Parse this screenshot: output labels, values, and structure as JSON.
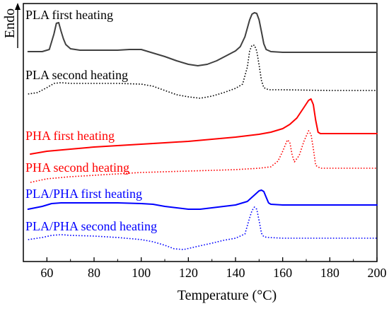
{
  "chart_data": {
    "type": "line",
    "xlabel": "Temperature (°C)",
    "ylabel": "Endo",
    "xlim": [
      50,
      200
    ],
    "x_ticks": [
      "60",
      "80",
      "100",
      "120",
      "140",
      "160",
      "180",
      "200"
    ],
    "x_tick_values": [
      60,
      80,
      100,
      120,
      140,
      160,
      180,
      200
    ],
    "y_ticks_shown": false,
    "grid": false,
    "legend": "none",
    "y_units": "offset heat flow (arbitrary, curves vertically stacked)",
    "series": [
      {
        "name": "PLA first heating",
        "color": "#404040",
        "style": "solid",
        "points": [
          [
            52,
            73
          ],
          [
            58,
            73
          ],
          [
            61,
            70
          ],
          [
            63,
            48
          ],
          [
            64,
            33
          ],
          [
            65,
            32
          ],
          [
            66,
            44
          ],
          [
            67,
            55
          ],
          [
            68,
            63
          ],
          [
            70,
            69
          ],
          [
            74,
            71
          ],
          [
            80,
            71
          ],
          [
            90,
            71
          ],
          [
            95,
            70
          ],
          [
            100,
            70
          ],
          [
            105,
            75
          ],
          [
            110,
            80
          ],
          [
            115,
            86
          ],
          [
            120,
            91
          ],
          [
            124,
            93
          ],
          [
            128,
            91
          ],
          [
            132,
            86
          ],
          [
            136,
            79
          ],
          [
            140,
            72
          ],
          [
            142,
            66
          ],
          [
            144,
            52
          ],
          [
            146,
            28
          ],
          [
            147,
            20
          ],
          [
            148,
            18
          ],
          [
            149,
            19
          ],
          [
            150,
            28
          ],
          [
            151,
            45
          ],
          [
            152,
            62
          ],
          [
            153,
            70
          ],
          [
            155,
            73
          ],
          [
            160,
            74
          ],
          [
            180,
            74
          ],
          [
            200,
            74
          ]
        ]
      },
      {
        "name": "PLA second heating",
        "color": "#000000",
        "style": "dotted",
        "points": [
          [
            52,
            133
          ],
          [
            56,
            131
          ],
          [
            60,
            124
          ],
          [
            63,
            118
          ],
          [
            66,
            117
          ],
          [
            70,
            118
          ],
          [
            80,
            118
          ],
          [
            90,
            118
          ],
          [
            100,
            119
          ],
          [
            105,
            122
          ],
          [
            110,
            128
          ],
          [
            115,
            134
          ],
          [
            120,
            137
          ],
          [
            125,
            139
          ],
          [
            130,
            136
          ],
          [
            135,
            131
          ],
          [
            140,
            125
          ],
          [
            143,
            119
          ],
          [
            145,
            95
          ],
          [
            146,
            72
          ],
          [
            147,
            64
          ],
          [
            148,
            64
          ],
          [
            149,
            72
          ],
          [
            150,
            92
          ],
          [
            151,
            114
          ],
          [
            152,
            124
          ],
          [
            154,
            127
          ],
          [
            160,
            127
          ],
          [
            180,
            128
          ],
          [
            200,
            128
          ]
        ]
      },
      {
        "name": "PHA first heating",
        "color": "#ff0000",
        "style": "solid",
        "points": [
          [
            53,
            218
          ],
          [
            60,
            214
          ],
          [
            70,
            211
          ],
          [
            80,
            208
          ],
          [
            90,
            206
          ],
          [
            100,
            204
          ],
          [
            110,
            202
          ],
          [
            120,
            200
          ],
          [
            130,
            197
          ],
          [
            140,
            194
          ],
          [
            150,
            190
          ],
          [
            155,
            187
          ],
          [
            160,
            182
          ],
          [
            163,
            176
          ],
          [
            166,
            167
          ],
          [
            169,
            152
          ],
          [
            171,
            142
          ],
          [
            172,
            140
          ],
          [
            173,
            148
          ],
          [
            174,
            170
          ],
          [
            175,
            187
          ],
          [
            176,
            189
          ],
          [
            180,
            189
          ],
          [
            190,
            189
          ],
          [
            200,
            189
          ]
        ]
      },
      {
        "name": "PHA second heating",
        "color": "#ff0000",
        "style": "dotted",
        "points": [
          [
            53,
            258
          ],
          [
            60,
            253
          ],
          [
            70,
            250
          ],
          [
            80,
            248
          ],
          [
            90,
            246
          ],
          [
            100,
            244
          ],
          [
            110,
            243
          ],
          [
            120,
            242
          ],
          [
            130,
            241
          ],
          [
            140,
            240
          ],
          [
            150,
            238
          ],
          [
            155,
            236
          ],
          [
            158,
            228
          ],
          [
            160,
            214
          ],
          [
            162,
            198
          ],
          [
            163,
            201
          ],
          [
            164,
            219
          ],
          [
            165,
            229
          ],
          [
            167,
            220
          ],
          [
            169,
            200
          ],
          [
            171,
            185
          ],
          [
            172,
            190
          ],
          [
            173,
            210
          ],
          [
            174,
            234
          ],
          [
            176,
            238
          ],
          [
            180,
            238
          ],
          [
            200,
            238
          ]
        ]
      },
      {
        "name": "PLA/PHA first heating",
        "color": "#0000ff",
        "style": "solid",
        "points": [
          [
            52,
            296
          ],
          [
            58,
            292
          ],
          [
            62,
            288
          ],
          [
            66,
            287
          ],
          [
            70,
            287
          ],
          [
            80,
            287
          ],
          [
            90,
            287
          ],
          [
            100,
            288
          ],
          [
            105,
            289
          ],
          [
            110,
            292
          ],
          [
            115,
            294
          ],
          [
            120,
            296
          ],
          [
            125,
            296
          ],
          [
            130,
            294
          ],
          [
            135,
            292
          ],
          [
            140,
            290
          ],
          [
            145,
            285
          ],
          [
            148,
            276
          ],
          [
            150,
            270
          ],
          [
            151,
            269
          ],
          [
            152,
            271
          ],
          [
            153,
            279
          ],
          [
            154,
            287
          ],
          [
            155,
            289
          ],
          [
            160,
            290
          ],
          [
            180,
            290
          ],
          [
            200,
            290
          ]
        ]
      },
      {
        "name": "PLA/PHA second heating",
        "color": "#0000ff",
        "style": "dotted",
        "points": [
          [
            52,
            339
          ],
          [
            58,
            336
          ],
          [
            62,
            333
          ],
          [
            66,
            332
          ],
          [
            70,
            333
          ],
          [
            80,
            334
          ],
          [
            90,
            336
          ],
          [
            100,
            339
          ],
          [
            105,
            342
          ],
          [
            110,
            347
          ],
          [
            114,
            352
          ],
          [
            118,
            353
          ],
          [
            122,
            350
          ],
          [
            126,
            347
          ],
          [
            130,
            344
          ],
          [
            135,
            340
          ],
          [
            140,
            337
          ],
          [
            144,
            331
          ],
          [
            146,
            308
          ],
          [
            147,
            298
          ],
          [
            148,
            293
          ],
          [
            149,
            296
          ],
          [
            150,
            312
          ],
          [
            151,
            330
          ],
          [
            152,
            335
          ],
          [
            154,
            336
          ],
          [
            160,
            337
          ],
          [
            180,
            337
          ],
          [
            200,
            337
          ]
        ]
      }
    ]
  }
}
